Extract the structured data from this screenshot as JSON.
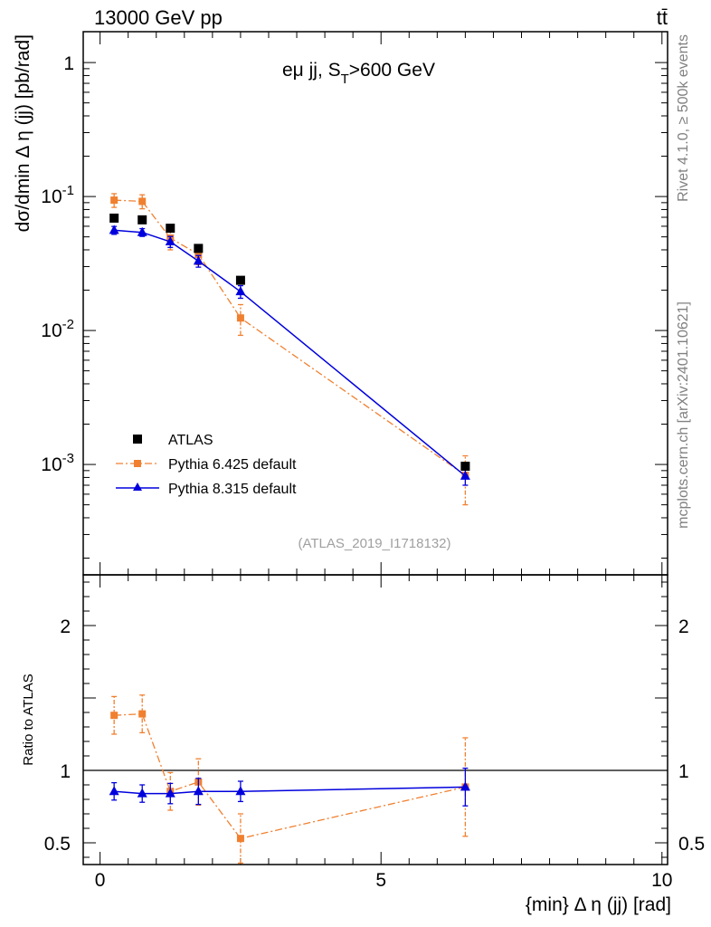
{
  "header": {
    "energy_label": "13000 GeV pp",
    "process_label": "tt̄"
  },
  "side": {
    "rivet_label": "Rivet 4.1.0, ≥ 500k events",
    "source_label": "mcplots.cern.ch [arXiv:2401.10621]"
  },
  "chart_data": [
    {
      "type": "scatter",
      "title": "eμ jj, S_T>600 GeV",
      "title_main": "eμ jj, S",
      "title_sub": "T",
      "title_tail": ">600 GeV",
      "ylabel": "dσ/dmin Δ η (jj) [pb/rad]",
      "xlabel": "{min} Δ η (jj) [rad]",
      "analysis_tag": "(ATLAS_2019_I1718132)",
      "xlim": [
        -0.3,
        10.1
      ],
      "ylim": [
        0.00015,
        1.7
      ],
      "yscale": "log",
      "xticks": [
        "0",
        "5",
        "10"
      ],
      "yticks": [
        "1",
        "10^-1",
        "10^-2",
        "10^-3"
      ],
      "legend_position": "lower-left",
      "series": [
        {
          "name": "ATLAS",
          "color": "#000000",
          "marker": "square",
          "x": [
            0.25,
            0.75,
            1.25,
            1.75,
            2.5,
            6.5
          ],
          "y": [
            0.069,
            0.067,
            0.058,
            0.041,
            0.0237,
            0.00097
          ],
          "yerr_lo": [
            0,
            0,
            0,
            0,
            0,
            0
          ],
          "yerr_hi": [
            0,
            0,
            0,
            0,
            0,
            0
          ]
        },
        {
          "name": "Pythia 6.425 default",
          "color": "#f08030",
          "marker": "square",
          "line": "dashdot",
          "x": [
            0.25,
            0.75,
            1.25,
            1.75,
            2.5,
            6.5
          ],
          "y": [
            0.094,
            0.092,
            0.049,
            0.037,
            0.0124,
            0.00083
          ],
          "yerr_lo": [
            0.011,
            0.011,
            0.009,
            0.006,
            0.0032,
            0.00033
          ],
          "yerr_hi": [
            0.011,
            0.011,
            0.009,
            0.006,
            0.0032,
            0.00033
          ]
        },
        {
          "name": "Pythia 8.315 default",
          "color": "#0000dd",
          "marker": "triangle",
          "line": "solid",
          "x": [
            0.25,
            0.75,
            1.25,
            1.75,
            2.5,
            6.5
          ],
          "y": [
            0.056,
            0.054,
            0.046,
            0.033,
            0.0195,
            0.00082
          ],
          "yerr_lo": [
            0.0038,
            0.0036,
            0.0043,
            0.0033,
            0.0021,
            0.00012
          ],
          "yerr_hi": [
            0.0038,
            0.0036,
            0.0043,
            0.0033,
            0.0021,
            0.00012
          ]
        }
      ]
    },
    {
      "type": "scatter",
      "ylabel": "Ratio to ATLAS",
      "xlim": [
        -0.3,
        10.1
      ],
      "ylim": [
        0.35,
        2.35
      ],
      "yticks": [
        "0.5",
        "1",
        "2"
      ],
      "reference_line": 1,
      "series": [
        {
          "name": "Pythia 6.425 default",
          "color": "#f08030",
          "marker": "square",
          "line": "dashdot",
          "x": [
            0.25,
            0.75,
            1.25,
            1.75,
            2.5,
            6.5
          ],
          "y": [
            1.38,
            1.39,
            0.855,
            0.92,
            0.53,
            0.885
          ],
          "yerr_lo": [
            0.13,
            0.13,
            0.13,
            0.16,
            0.17,
            0.34
          ],
          "yerr_hi": [
            0.13,
            0.13,
            0.13,
            0.16,
            0.17,
            0.34
          ]
        },
        {
          "name": "Pythia 8.315 default",
          "color": "#0000dd",
          "marker": "triangle",
          "line": "solid",
          "x": [
            0.25,
            0.75,
            1.25,
            1.75,
            2.5,
            6.5
          ],
          "y": [
            0.855,
            0.84,
            0.84,
            0.855,
            0.855,
            0.885
          ],
          "yerr_lo": [
            0.06,
            0.06,
            0.07,
            0.09,
            0.07,
            0.13
          ],
          "yerr_hi": [
            0.06,
            0.06,
            0.07,
            0.09,
            0.07,
            0.13
          ]
        }
      ]
    }
  ]
}
